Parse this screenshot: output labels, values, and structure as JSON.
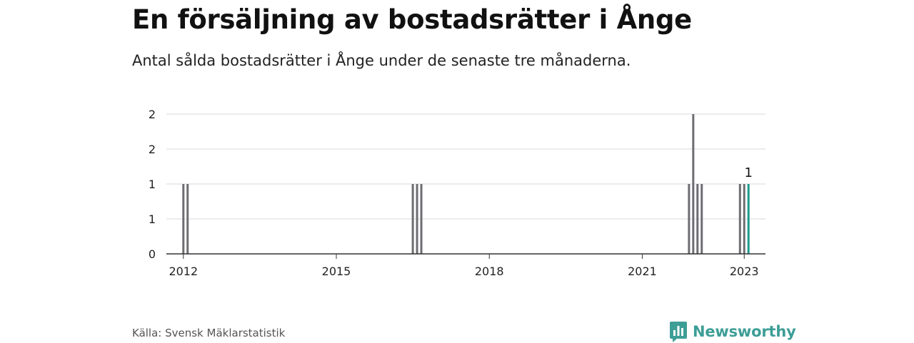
{
  "title": "En försäljning av bostadsrätter i Ånge",
  "subtitle": "Antal sålda bostadsrätter i Ånge under de senaste tre månaderna.",
  "source": "Källa: Svensk Mäklarstatistik",
  "brand": {
    "name": "Newsworthy",
    "icon": "newsworthy-logo-icon"
  },
  "colors": {
    "bar": "#6d6d72",
    "highlight": "#1a9a8e",
    "grid": "#d9d9d9",
    "axis": "#333333",
    "brand": "#3d9e96"
  },
  "chart_data": {
    "type": "bar",
    "title": "En försäljning av bostadsrätter i Ånge",
    "subtitle": "Antal sålda bostadsrätter i Ånge under de senaste tre månaderna.",
    "xlabel": "",
    "ylabel": "",
    "ylim": [
      0,
      2
    ],
    "yticks": [
      0,
      0.5,
      1,
      1.5,
      2
    ],
    "ytick_labels": [
      "0",
      "1",
      "1",
      "2",
      "2"
    ],
    "xlim": [
      "2011-09",
      "2023-06"
    ],
    "xticks": [
      "2012",
      "2015",
      "2018",
      "2021",
      "2023"
    ],
    "xtick_dates": [
      "2012-01",
      "2015-01",
      "2018-01",
      "2021-01",
      "2023-01"
    ],
    "grid": true,
    "legend": "none",
    "series": [
      {
        "x": [
          "2012-01",
          "2012-02",
          "2016-07",
          "2016-08",
          "2016-09",
          "2021-12",
          "2022-01",
          "2022-02",
          "2022-03",
          "2022-12",
          "2023-01",
          "2023-02"
        ],
        "values": [
          1,
          1,
          1,
          1,
          1,
          1,
          2,
          1,
          1,
          1,
          1,
          1
        ]
      }
    ],
    "highlight": {
      "x": "2023-02",
      "value": 1,
      "label": "1"
    }
  }
}
